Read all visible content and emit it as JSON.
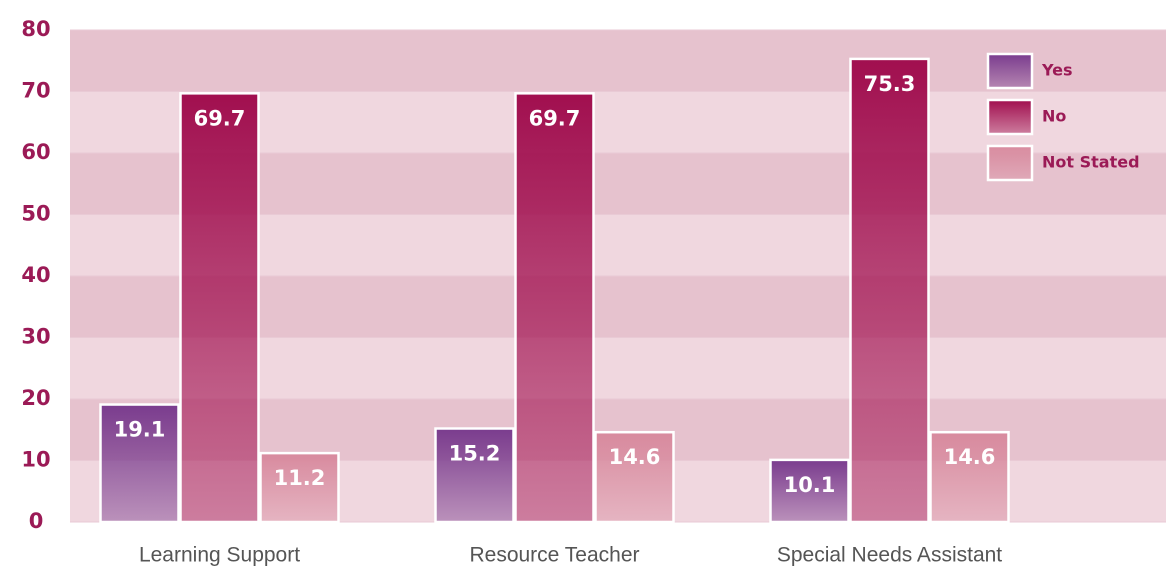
{
  "chart_data": {
    "type": "bar",
    "categories": [
      "Learning Support",
      "Resource Teacher",
      "Special Needs Assistant"
    ],
    "series": [
      {
        "name": "Yes",
        "color": "#7a3c8e",
        "values": [
          19.1,
          15.2,
          10.1
        ]
      },
      {
        "name": "No",
        "color": "#a10f4f",
        "values": [
          69.7,
          69.7,
          75.3
        ]
      },
      {
        "name": "Not Stated",
        "color": "#d88a9e",
        "values": [
          11.2,
          14.6,
          14.6
        ]
      }
    ],
    "ylim": [
      0,
      80
    ],
    "yticks": [
      0,
      10,
      20,
      30,
      40,
      50,
      60,
      70,
      80
    ],
    "grid": true,
    "legend": "top-right"
  }
}
